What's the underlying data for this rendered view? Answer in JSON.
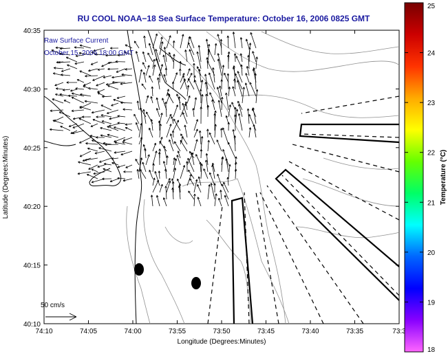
{
  "title": "RU COOL  NOAA−18  Sea Surface Temperature:  October 16, 2006 0825 GMT",
  "annotations": {
    "line1": "Raw Surface Current",
    "line2": "October 15, 2006 18:00 GMT"
  },
  "scale_label": "50 cm/s",
  "x_axis": {
    "label": "Longitude (Degrees:Minutes)",
    "ticks": [
      "74:10",
      "74:05",
      "74:00",
      "73:55",
      "73:50",
      "73:45",
      "73:40",
      "73:35",
      "73:3"
    ]
  },
  "y_axis": {
    "label": "Latitude (Degrees:Minutes)",
    "ticks": [
      "40:35",
      "40:30",
      "40:25",
      "40:20",
      "40:15",
      "40:10"
    ]
  },
  "colorbar": {
    "label": "Temperature (°C)",
    "ticks": [
      "25",
      "24",
      "23",
      "22",
      "21",
      "20",
      "19",
      "18"
    ],
    "colors": [
      "#ff66ff",
      "#8800ff",
      "#0000ff",
      "#0066ff",
      "#00ffff",
      "#00ff66",
      "#66ff00",
      "#ffff00",
      "#ffaa00",
      "#ff3300",
      "#cc0000",
      "#770000"
    ]
  },
  "colors": {
    "title": "#1a1aa0",
    "annotation": "#1a1aa0",
    "land": "#ffffff",
    "contour": "#909090"
  }
}
